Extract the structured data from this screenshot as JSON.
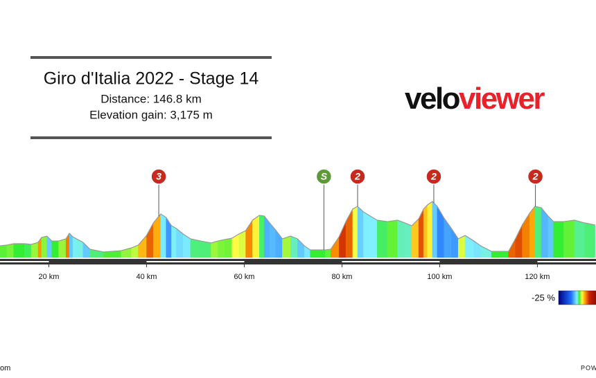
{
  "chart_data": {
    "type": "elevation-profile",
    "title": "Giro d'Italia 2022 - Stage 14",
    "subtitle": "Distance: 146.8 km",
    "subtitle2": "Elevation gain: 3,175 m",
    "logo": {
      "part1": "velo",
      "part2": "viewer"
    },
    "x": [
      10.0,
      11.4,
      12.8,
      15.0,
      16.4,
      17.8,
      18.5,
      19.6,
      20.6,
      22.0,
      23.5,
      24.2,
      24.9,
      25.9,
      27.0,
      28.4,
      31.2,
      34.8,
      36.9,
      38.3,
      40.0,
      41.4,
      42.9,
      44.0,
      45.1,
      46.1,
      47.5,
      49.0,
      51.1,
      53.2,
      54.6,
      56.0,
      57.5,
      58.9,
      60.3,
      61.7,
      63.1,
      64.1,
      65.2,
      66.4,
      67.8,
      69.5,
      70.9,
      72.3,
      73.5,
      76.6,
      77.7,
      79.4,
      80.8,
      82.2,
      83.2,
      84.4,
      85.8,
      87.2,
      89.3,
      91.4,
      92.9,
      94.3,
      95.7,
      96.7,
      97.5,
      98.5,
      99.5,
      100.9,
      102.4,
      103.8,
      105.2,
      107.0,
      108.4,
      110.6,
      114.1,
      115.5,
      116.9,
      118.4,
      119.5,
      120.8,
      122.2,
      123.3,
      125.4,
      127.6,
      129.7,
      131.8
    ],
    "elevation": [
      271,
      279,
      293,
      293,
      286,
      307,
      357,
      371,
      321,
      321,
      343,
      400,
      364,
      336,
      307,
      236,
      207,
      221,
      250,
      279,
      378,
      507,
      600,
      564,
      478,
      450,
      393,
      343,
      321,
      300,
      321,
      336,
      350,
      393,
      428,
      536,
      586,
      578,
      507,
      436,
      343,
      371,
      343,
      271,
      229,
      229,
      236,
      364,
      521,
      650,
      678,
      621,
      578,
      536,
      521,
      536,
      507,
      478,
      550,
      650,
      693,
      728,
      678,
      557,
      450,
      343,
      378,
      321,
      271,
      214,
      214,
      343,
      486,
      607,
      678,
      664,
      578,
      521,
      521,
      536,
      507,
      486
    ],
    "xlim": [
      10,
      132
    ],
    "ylim": [
      150,
      800
    ],
    "xticks": [
      {
        "value": 20,
        "label": "20 km"
      },
      {
        "value": 40,
        "label": "40 km"
      },
      {
        "value": 60,
        "label": "60 km"
      },
      {
        "value": 80,
        "label": "80 km"
      },
      {
        "value": 100,
        "label": "100 km"
      },
      {
        "value": 120,
        "label": "120 km"
      }
    ],
    "markers": [
      {
        "label": "3",
        "x": 42.5,
        "color": "#c62a1f"
      },
      {
        "label": "S",
        "x": 76.3,
        "color": "#5b9a36"
      },
      {
        "label": "2",
        "x": 83.2,
        "color": "#c62a1f"
      },
      {
        "label": "2",
        "x": 98.8,
        "color": "#c62a1f"
      },
      {
        "label": "2",
        "x": 119.6,
        "color": "#c62a1f"
      }
    ],
    "gradient_colors": [
      {
        "value": -25,
        "color": "#000080"
      },
      {
        "value": -10,
        "color": "#1e6fff"
      },
      {
        "value": -3,
        "color": "#80f0ff"
      },
      {
        "value": 0,
        "color": "#33ee33"
      },
      {
        "value": 3,
        "color": "#ffff44"
      },
      {
        "value": 7,
        "color": "#ff9900"
      },
      {
        "value": 12,
        "color": "#cc2200"
      },
      {
        "value": 25,
        "color": "#660000"
      }
    ],
    "legend_label": {
      "value": -25,
      "label": "-25 %"
    },
    "footer_left": "om",
    "footer_right": "POW"
  }
}
